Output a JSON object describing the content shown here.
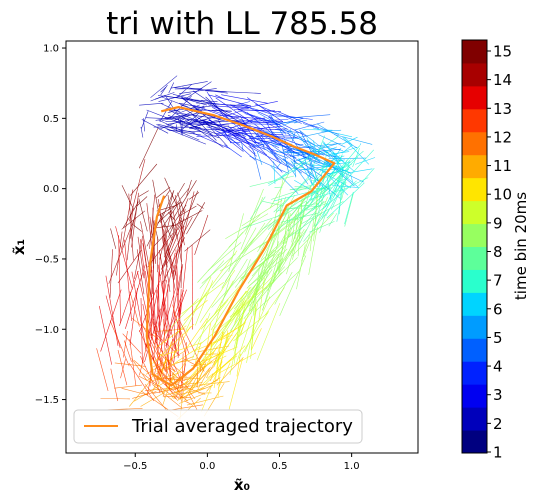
{
  "chart_data": {
    "type": "line",
    "title": "tri with LL 785.58",
    "xlabel": "x̃₀",
    "ylabel": "x̃₁",
    "xlim": [
      -0.98,
      1.46
    ],
    "ylim": [
      -1.88,
      1.05
    ],
    "xticks": [
      -0.5,
      0.0,
      0.5,
      1.0
    ],
    "xtick_labels": [
      "−0.5",
      "0.0",
      "0.5",
      "1.0"
    ],
    "yticks": [
      -1.5,
      -1.0,
      -0.5,
      0.0,
      0.5,
      1.0
    ],
    "ytick_labels": [
      "−1.5",
      "−1.0",
      "−0.5",
      "0.0",
      "0.5",
      "1.0"
    ],
    "grid": false,
    "legend": {
      "position": "bottom-left",
      "entries": [
        "Trial averaged trajectory"
      ]
    },
    "colorbar": {
      "label": "time bin 20ms",
      "ticks": [
        "1",
        "2",
        "3",
        "4",
        "5",
        "6",
        "7",
        "8",
        "9",
        "10",
        "11",
        "12",
        "13",
        "14",
        "15"
      ],
      "colors": [
        "#000080",
        "#0000bb",
        "#0000f1",
        "#0022ff",
        "#0060ff",
        "#009cff",
        "#00d4ff",
        "#2affcd",
        "#5dff9a",
        "#97ff60",
        "#cdff2a",
        "#ffe500",
        "#ffab00",
        "#ff7100",
        "#ff3800",
        "#e60000",
        "#a80000",
        "#800000"
      ]
    },
    "series": [
      {
        "name": "Trial averaged trajectory",
        "color": "#ff8c1a",
        "x": [
          -0.32,
          -0.2,
          0.05,
          0.25,
          0.45,
          0.6,
          0.75,
          0.88,
          0.72,
          0.55,
          0.4,
          0.22,
          0.05,
          -0.1,
          -0.25,
          -0.38,
          -0.42,
          -0.4,
          -0.35,
          -0.3
        ],
        "y": [
          0.55,
          0.58,
          0.52,
          0.45,
          0.37,
          0.3,
          0.24,
          0.18,
          -0.02,
          -0.12,
          -0.42,
          -0.72,
          -1.05,
          -1.28,
          -1.4,
          -1.32,
          -1.05,
          -0.55,
          -0.2,
          -0.05
        ]
      }
    ]
  }
}
